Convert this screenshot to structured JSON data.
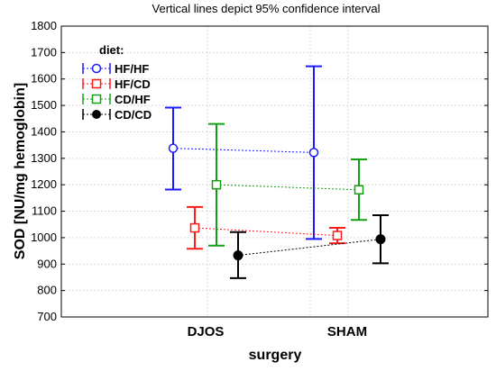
{
  "chart_data": {
    "type": "line",
    "title": "Vertical lines depict 95% confidence interval",
    "xlabel": "surgery",
    "ylabel": "SOD [NU/mg hemoglobin]",
    "categories": [
      "DJOS",
      "SHAM"
    ],
    "ylim": [
      700,
      1800
    ],
    "yticks": [
      700,
      800,
      900,
      1000,
      1100,
      1200,
      1300,
      1400,
      1500,
      1600,
      1700,
      1800
    ],
    "grid": true,
    "legend_title": "diet:",
    "legend_position": "top-left",
    "series": [
      {
        "name": "HF/HF",
        "color": "#1a1aff",
        "marker": "circle-open",
        "values": [
          1338,
          1322
        ],
        "ci_low": [
          1182,
          995
        ],
        "ci_high": [
          1492,
          1648
        ]
      },
      {
        "name": "HF/CD",
        "color": "#ff1a1a",
        "marker": "square-open",
        "values": [
          1037,
          1008
        ],
        "ci_low": [
          958,
          979
        ],
        "ci_high": [
          1116,
          1037
        ]
      },
      {
        "name": "CD/HF",
        "color": "#14a014",
        "marker": "square-open",
        "values": [
          1200,
          1181
        ],
        "ci_low": [
          970,
          1067
        ],
        "ci_high": [
          1430,
          1296
        ]
      },
      {
        "name": "CD/CD",
        "color": "#000000",
        "marker": "circle-filled",
        "values": [
          933,
          994
        ],
        "ci_low": [
          847,
          903
        ],
        "ci_high": [
          1021,
          1085
        ]
      }
    ]
  }
}
